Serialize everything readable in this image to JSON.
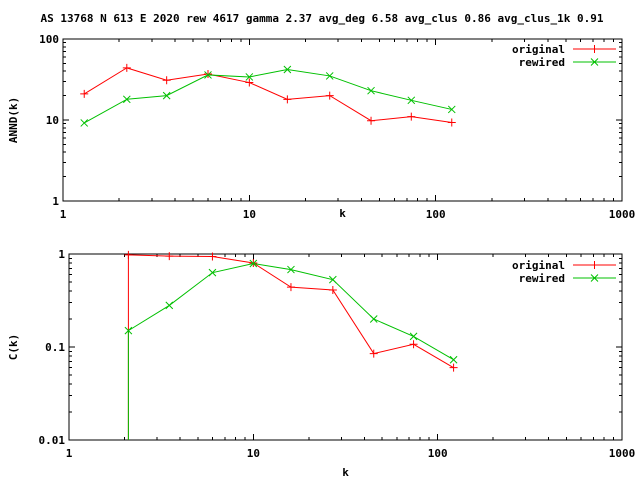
{
  "title": "AS 13768 N 613 E 2020 rew 4617 gamma 2.37 avg_deg 6.58 avg_clus 0.86 avg_clus_1k 0.91",
  "colors": {
    "original": "#ff0000",
    "rewired": "#00c000"
  },
  "chart_data": [
    {
      "type": "line",
      "xlabel": "k",
      "ylabel": "ANND(k)",
      "xscale": "log",
      "yscale": "log",
      "xlim": [
        1,
        1000
      ],
      "ylim": [
        1,
        100
      ],
      "xticks": [
        1,
        10,
        100,
        1000
      ],
      "xtick_labels": [
        "1",
        "10",
        "100",
        "1000"
      ],
      "yticks": [
        1,
        10,
        100
      ],
      "ytick_labels": [
        "1",
        "10",
        "100"
      ],
      "legend": "top-right",
      "series": [
        {
          "name": "original",
          "marker": "+",
          "x": [
            1.3,
            2.2,
            3.6,
            6.0,
            10,
            16,
            27,
            45,
            74,
            122
          ],
          "y": [
            21,
            44,
            31,
            37,
            29,
            18,
            20,
            9.8,
            11,
            9.3
          ]
        },
        {
          "name": "rewired",
          "marker": "x",
          "x": [
            1.3,
            2.2,
            3.6,
            6.0,
            10,
            16,
            27,
            45,
            74,
            122
          ],
          "y": [
            9.2,
            18,
            20,
            36,
            34,
            42,
            35,
            23,
            17.5,
            13.5
          ]
        }
      ]
    },
    {
      "type": "line",
      "xlabel": "k",
      "ylabel": "C(k)",
      "xscale": "log",
      "yscale": "log",
      "xlim": [
        1,
        1000
      ],
      "ylim": [
        0.01,
        1
      ],
      "xticks": [
        1,
        10,
        100,
        1000
      ],
      "xtick_labels": [
        "1",
        "10",
        "100",
        "1000"
      ],
      "yticks": [
        0.01,
        0.1,
        1
      ],
      "ytick_labels": [
        "0.01",
        "0.1",
        "1"
      ],
      "legend": "top-right",
      "series": [
        {
          "name": "original",
          "marker": "+",
          "x": [
            2.1,
            3.5,
            6.0,
            10,
            16,
            27,
            45,
            74,
            122
          ],
          "y": [
            0.98,
            0.95,
            0.94,
            0.8,
            0.44,
            0.41,
            0.085,
            0.107,
            0.06
          ],
          "drop_from_x": 2.1
        },
        {
          "name": "rewired",
          "marker": "x",
          "x": [
            2.1,
            3.5,
            6.0,
            10,
            16,
            27,
            45,
            74,
            122
          ],
          "y": [
            0.15,
            0.28,
            0.63,
            0.79,
            0.68,
            0.53,
            0.2,
            0.13,
            0.073
          ],
          "drop_from_x": 2.1
        }
      ]
    }
  ]
}
